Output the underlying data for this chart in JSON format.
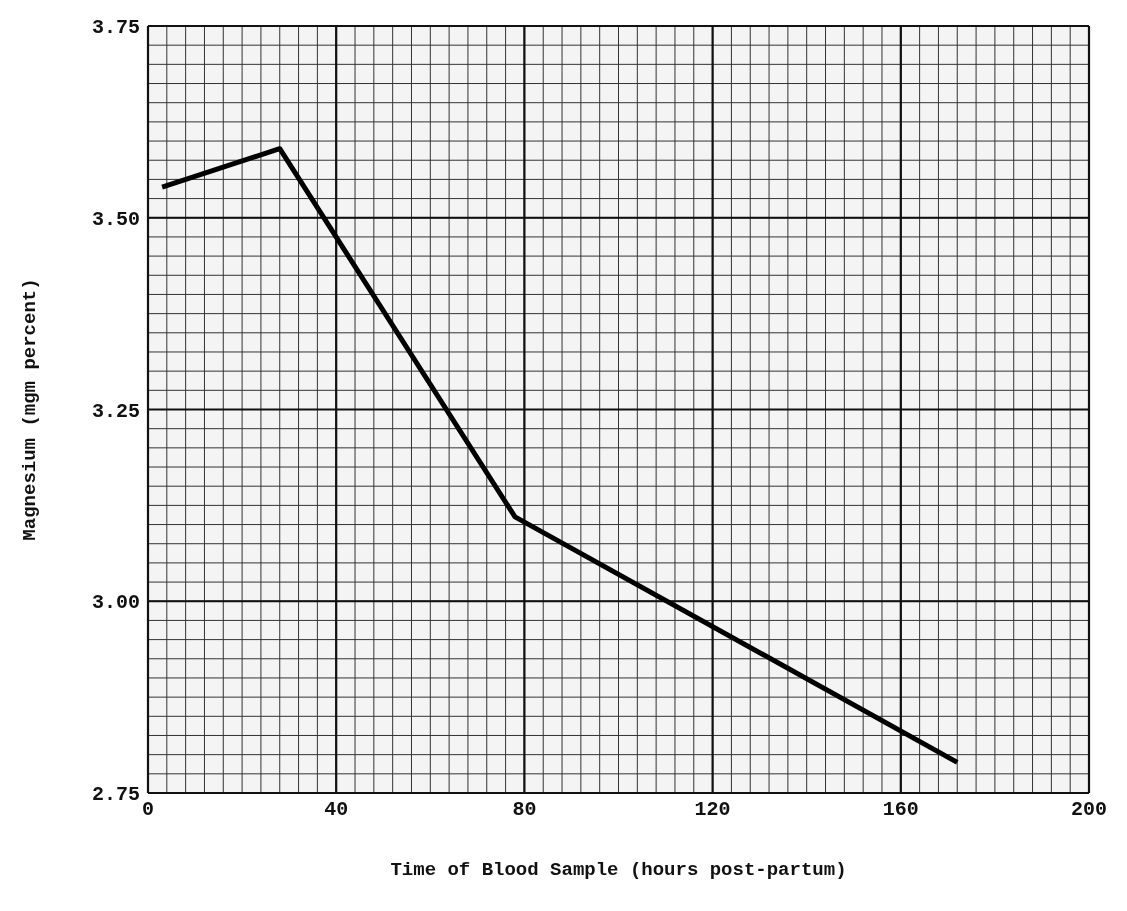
{
  "chart_data": {
    "type": "line",
    "xlabel": "Time of Blood Sample (hours post-partum)",
    "ylabel": "Magnesium (mgm percent)",
    "x": [
      3,
      28,
      78,
      172
    ],
    "series": [
      {
        "color": "#000000",
        "values": [
          3.54,
          3.59,
          3.11,
          2.79
        ]
      }
    ],
    "xlim": [
      0,
      200
    ],
    "xticks": [
      0,
      40,
      80,
      120,
      160,
      200
    ],
    "ylim": [
      2.75,
      3.75
    ],
    "yticks": [
      {
        "value": 2.75,
        "label": "2.75"
      },
      {
        "value": 3,
        "label": "3.00"
      },
      {
        "value": 3.25,
        "label": "3.25"
      },
      {
        "value": 3.5,
        "label": "3.50"
      },
      {
        "value": 3.75,
        "label": "3.75"
      }
    ],
    "grid": true,
    "marker": "none",
    "line_style": "solid"
  }
}
